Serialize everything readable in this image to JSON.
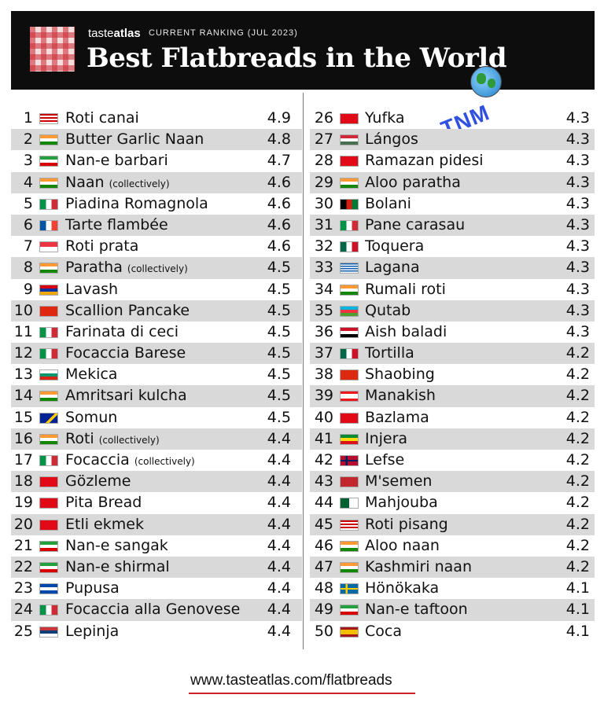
{
  "header": {
    "brand_taste": "taste",
    "brand_atlas": "atlas",
    "ranking_label": "CURRENT RANKING (JUL 2023)",
    "title": "Best Flatbreads in the World",
    "logo_icon": "checkered-tablecloth-icon"
  },
  "overlay": {
    "stamp_text": "TNM",
    "globe_icon": "globe-icon"
  },
  "colors": {
    "header_bg": "#0d0d0d",
    "row_shade": "#d9d9d9",
    "url_underline": "#cc2222"
  },
  "left_items": [
    {
      "rank": "1",
      "country_flag": "malaysia",
      "name": "Roti canai",
      "note": "",
      "score": "4.9"
    },
    {
      "rank": "2",
      "country_flag": "india",
      "name": "Butter Garlic Naan",
      "note": "",
      "score": "4.8"
    },
    {
      "rank": "3",
      "country_flag": "iran",
      "name": "Nan-e barbari",
      "note": "",
      "score": "4.7"
    },
    {
      "rank": "4",
      "country_flag": "india",
      "name": "Naan",
      "note": "(collectively)",
      "score": "4.6"
    },
    {
      "rank": "5",
      "country_flag": "italy",
      "name": "Piadina Romagnola",
      "note": "",
      "score": "4.6"
    },
    {
      "rank": "6",
      "country_flag": "france",
      "name": "Tarte flambée",
      "note": "",
      "score": "4.6"
    },
    {
      "rank": "7",
      "country_flag": "singapore",
      "name": "Roti prata",
      "note": "",
      "score": "4.6"
    },
    {
      "rank": "8",
      "country_flag": "india",
      "name": "Paratha",
      "note": "(collectively)",
      "score": "4.5"
    },
    {
      "rank": "9",
      "country_flag": "armenia",
      "name": "Lavash",
      "note": "",
      "score": "4.5"
    },
    {
      "rank": "10",
      "country_flag": "china",
      "name": "Scallion Pancake",
      "note": "",
      "score": "4.5"
    },
    {
      "rank": "11",
      "country_flag": "italy",
      "name": "Farinata di ceci",
      "note": "",
      "score": "4.5"
    },
    {
      "rank": "12",
      "country_flag": "italy",
      "name": "Focaccia Barese",
      "note": "",
      "score": "4.5"
    },
    {
      "rank": "13",
      "country_flag": "bulgaria",
      "name": "Mekica",
      "note": "",
      "score": "4.5"
    },
    {
      "rank": "14",
      "country_flag": "india",
      "name": "Amritsari kulcha",
      "note": "",
      "score": "4.5"
    },
    {
      "rank": "15",
      "country_flag": "bosnia",
      "name": "Somun",
      "note": "",
      "score": "4.5"
    },
    {
      "rank": "16",
      "country_flag": "india",
      "name": "Roti",
      "note": "(collectively)",
      "score": "4.4"
    },
    {
      "rank": "17",
      "country_flag": "italy",
      "name": "Focaccia",
      "note": "(collectively)",
      "score": "4.4"
    },
    {
      "rank": "18",
      "country_flag": "turkey",
      "name": "Gözleme",
      "note": "",
      "score": "4.4"
    },
    {
      "rank": "19",
      "country_flag": "turkey",
      "name": "Pita Bread",
      "note": "",
      "score": "4.4"
    },
    {
      "rank": "20",
      "country_flag": "turkey",
      "name": "Etli ekmek",
      "note": "",
      "score": "4.4"
    },
    {
      "rank": "21",
      "country_flag": "iran",
      "name": "Nan-e sangak",
      "note": "",
      "score": "4.4"
    },
    {
      "rank": "22",
      "country_flag": "iran",
      "name": "Nan-e shirmal",
      "note": "",
      "score": "4.4"
    },
    {
      "rank": "23",
      "country_flag": "el-salvador",
      "name": "Pupusa",
      "note": "",
      "score": "4.4"
    },
    {
      "rank": "24",
      "country_flag": "italy",
      "name": "Focaccia alla Genovese",
      "note": "",
      "score": "4.4"
    },
    {
      "rank": "25",
      "country_flag": "serbia",
      "name": "Lepinja",
      "note": "",
      "score": "4.4"
    }
  ],
  "right_items": [
    {
      "rank": "26",
      "country_flag": "turkey",
      "name": "Yufka",
      "note": "",
      "score": "4.3"
    },
    {
      "rank": "27",
      "country_flag": "hungary",
      "name": "Lángos",
      "note": "",
      "score": "4.3"
    },
    {
      "rank": "28",
      "country_flag": "turkey",
      "name": "Ramazan pidesi",
      "note": "",
      "score": "4.3"
    },
    {
      "rank": "29",
      "country_flag": "india",
      "name": "Aloo paratha",
      "note": "",
      "score": "4.3"
    },
    {
      "rank": "30",
      "country_flag": "afghanistan",
      "name": "Bolani",
      "note": "",
      "score": "4.3"
    },
    {
      "rank": "31",
      "country_flag": "italy",
      "name": "Pane carasau",
      "note": "",
      "score": "4.3"
    },
    {
      "rank": "32",
      "country_flag": "mexico",
      "name": "Toquera",
      "note": "",
      "score": "4.3"
    },
    {
      "rank": "33",
      "country_flag": "greece",
      "name": "Lagana",
      "note": "",
      "score": "4.3"
    },
    {
      "rank": "34",
      "country_flag": "india",
      "name": "Rumali roti",
      "note": "",
      "score": "4.3"
    },
    {
      "rank": "35",
      "country_flag": "azerbaijan",
      "name": "Qutab",
      "note": "",
      "score": "4.3"
    },
    {
      "rank": "36",
      "country_flag": "egypt",
      "name": "Aish baladi",
      "note": "",
      "score": "4.3"
    },
    {
      "rank": "37",
      "country_flag": "mexico",
      "name": "Tortilla",
      "note": "",
      "score": "4.2"
    },
    {
      "rank": "38",
      "country_flag": "china",
      "name": "Shaobing",
      "note": "",
      "score": "4.2"
    },
    {
      "rank": "39",
      "country_flag": "lebanon",
      "name": "Manakish",
      "note": "",
      "score": "4.2"
    },
    {
      "rank": "40",
      "country_flag": "turkey",
      "name": "Bazlama",
      "note": "",
      "score": "4.2"
    },
    {
      "rank": "41",
      "country_flag": "ethiopia",
      "name": "Injera",
      "note": "",
      "score": "4.2"
    },
    {
      "rank": "42",
      "country_flag": "norway",
      "name": "Lefse",
      "note": "",
      "score": "4.2"
    },
    {
      "rank": "43",
      "country_flag": "morocco",
      "name": "M'semen",
      "note": "",
      "score": "4.2"
    },
    {
      "rank": "44",
      "country_flag": "algeria",
      "name": "Mahjouba",
      "note": "",
      "score": "4.2"
    },
    {
      "rank": "45",
      "country_flag": "malaysia",
      "name": "Roti pisang",
      "note": "",
      "score": "4.2"
    },
    {
      "rank": "46",
      "country_flag": "india",
      "name": "Aloo naan",
      "note": "",
      "score": "4.2"
    },
    {
      "rank": "47",
      "country_flag": "india",
      "name": "Kashmiri naan",
      "note": "",
      "score": "4.2"
    },
    {
      "rank": "48",
      "country_flag": "sweden",
      "name": "Hönökaka",
      "note": "",
      "score": "4.1"
    },
    {
      "rank": "49",
      "country_flag": "iran",
      "name": "Nan-e taftoon",
      "note": "",
      "score": "4.1"
    },
    {
      "rank": "50",
      "country_flag": "spain",
      "name": "Coca",
      "note": "",
      "score": "4.1"
    }
  ],
  "footer": {
    "url": "www.tasteatlas.com/flatbreads"
  }
}
